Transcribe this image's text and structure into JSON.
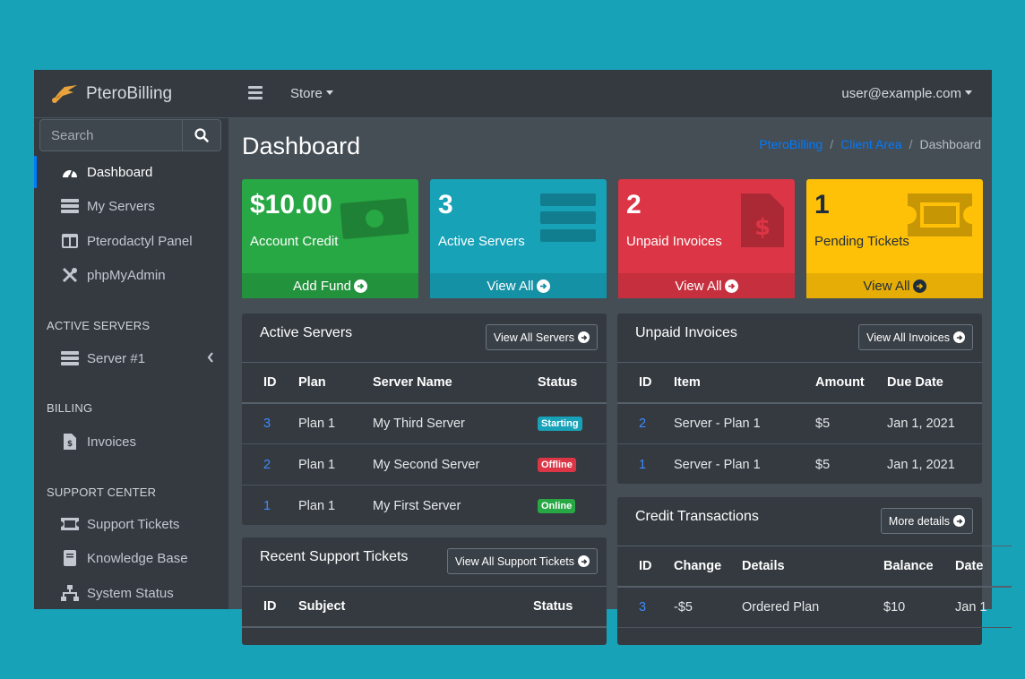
{
  "brand": {
    "name": "PteroBilling"
  },
  "search": {
    "placeholder": "Search"
  },
  "sidebar": {
    "items": [
      {
        "label": "Dashboard",
        "icon": "tachometer-icon",
        "active": true
      },
      {
        "label": "My Servers",
        "icon": "server-icon"
      },
      {
        "label": "Pterodactyl Panel",
        "icon": "columns-icon"
      },
      {
        "label": "phpMyAdmin",
        "icon": "tools-icon"
      }
    ],
    "active_servers_header": "ACTIVE SERVERS",
    "server_item": "Server #1",
    "billing_header": "BILLING",
    "invoices_item": "Invoices",
    "support_header": "SUPPORT CENTER",
    "support_items": [
      {
        "label": "Support Tickets"
      },
      {
        "label": "Knowledge Base"
      },
      {
        "label": "System Status"
      }
    ]
  },
  "topbar": {
    "store": "Store",
    "user": "user@example.com"
  },
  "page": {
    "title": "Dashboard",
    "breadcrumb": [
      "PteroBilling",
      "Client Area",
      "Dashboard"
    ]
  },
  "boxes": [
    {
      "value": "$10.00",
      "label": "Account Credit",
      "footer": "Add Fund",
      "color": "#28a745",
      "footer_color": "#23923d"
    },
    {
      "value": "3",
      "label": "Active Servers",
      "footer": "View All",
      "color": "#17a2b8",
      "footer_color": "#1591a5"
    },
    {
      "value": "2",
      "label": "Unpaid Invoices",
      "footer": "View All",
      "color": "#dc3545",
      "footer_color": "#c6303e"
    },
    {
      "value": "1",
      "label": "Pending Tickets",
      "footer": "View All",
      "color": "#ffc107",
      "footer_color": "#e5ad06"
    }
  ],
  "active_servers": {
    "title": "Active Servers",
    "button": "View All Servers",
    "columns": [
      "ID",
      "Plan",
      "Server Name",
      "Status"
    ],
    "rows": [
      {
        "id": "3",
        "plan": "Plan 1",
        "name": "My Third Server",
        "status": "Starting",
        "status_color": "#17a2b8"
      },
      {
        "id": "2",
        "plan": "Plan 1",
        "name": "My Second Server",
        "status": "Offline",
        "status_color": "#dc3545"
      },
      {
        "id": "1",
        "plan": "Plan 1",
        "name": "My First Server",
        "status": "Online",
        "status_color": "#28a745"
      }
    ]
  },
  "unpaid_invoices": {
    "title": "Unpaid Invoices",
    "button": "View All Invoices",
    "columns": [
      "ID",
      "Item",
      "Amount",
      "Due Date"
    ],
    "rows": [
      {
        "id": "2",
        "item": "Server - Plan 1",
        "amount": "$5",
        "due": "Jan 1, 2021"
      },
      {
        "id": "1",
        "item": "Server - Plan 1",
        "amount": "$5",
        "due": "Jan 1, 2021"
      }
    ]
  },
  "support_tickets": {
    "title": "Recent Support Tickets",
    "button": "View All Support Tickets",
    "columns": [
      "ID",
      "Subject",
      "Status"
    ]
  },
  "credit_transactions": {
    "title": "Credit Transactions",
    "button": "More details",
    "columns": [
      "ID",
      "Change",
      "Details",
      "Balance",
      "Date"
    ],
    "rows": [
      {
        "id": "3",
        "change": "-$5",
        "details": "Ordered Plan",
        "balance": "$10",
        "date": "Jan 1"
      }
    ]
  }
}
